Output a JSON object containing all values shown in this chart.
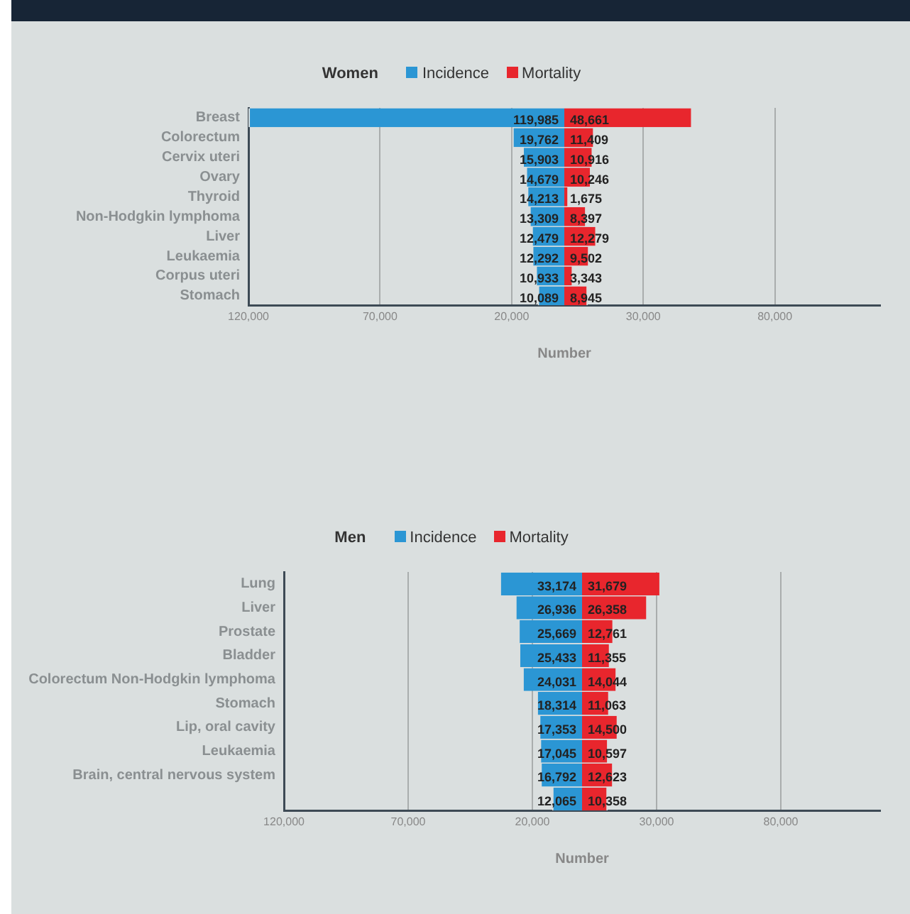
{
  "chart_data": [
    {
      "type": "bar",
      "orientation": "horizontal",
      "legend_title": "Women",
      "legend": "top",
      "xlabel": "Number",
      "grid": "x",
      "categories": [
        "Breast",
        "Colorectum",
        "Cervix uteri",
        "Ovary",
        "Thyroid",
        "Non-Hodgkin lymphoma",
        "Liver",
        "Leukaemia",
        "Corpus uteri",
        "Stomach"
      ],
      "xlim": [
        -120000,
        120000
      ],
      "xticks": [
        {
          "value": -120000,
          "label": "120,000"
        },
        {
          "value": -70000,
          "label": "70,000"
        },
        {
          "value": -20000,
          "label": "20,000"
        },
        {
          "value": 30000,
          "label": "30,000"
        },
        {
          "value": 80000,
          "label": "80,000"
        }
      ],
      "series": [
        {
          "name": "Incidence",
          "color": "#2b96d4",
          "base": [
            -119985,
            -19762,
            -15903,
            -14679,
            -14213,
            -13309,
            -12479,
            -12292,
            -10933,
            -10089
          ],
          "values": [
            119985,
            19762,
            15903,
            14679,
            14213,
            13309,
            12479,
            12292,
            10933,
            10089
          ],
          "value_labels": [
            "119,985",
            "19,762",
            "15,903",
            "14,679",
            "14,213",
            "13,309",
            "12,479",
            "12,292",
            "10,933",
            "10,089"
          ]
        },
        {
          "name": "Mortality",
          "color": "#e8262d",
          "values": [
            48661,
            11409,
            10916,
            10246,
            1675,
            8397,
            12279,
            9502,
            3343,
            8945
          ],
          "value_labels": [
            "48,661",
            "11,409",
            "10,916",
            "10,246",
            "1,675",
            "8,397",
            "12,279",
            "9,502",
            "3,343",
            "8,945"
          ]
        }
      ]
    },
    {
      "type": "bar",
      "orientation": "horizontal",
      "legend_title": "Men",
      "legend": "top",
      "xlabel": "Number",
      "grid": "x",
      "categories": [
        "Lung",
        "Liver",
        "Prostate",
        "Bladder",
        "Colorectum Non-Hodgkin lymphoma",
        "Stomach",
        "Lip, oral cavity",
        "Leukaemia",
        "Brain, central nervous system",
        null
      ],
      "xlim": [
        -120000,
        120000
      ],
      "xticks": [
        {
          "value": -120000,
          "label": "120,000"
        },
        {
          "value": -70000,
          "label": "70,000"
        },
        {
          "value": -20000,
          "label": "20,000"
        },
        {
          "value": 30000,
          "label": "30,000"
        },
        {
          "value": 80000,
          "label": "80,000"
        }
      ],
      "series": [
        {
          "name": "Incidence",
          "color": "#2b96d4",
          "base": [
            -33174,
            -26936,
            -25669,
            -25433,
            -24031,
            -18314,
            -17353,
            -17045,
            -16792,
            -12065
          ],
          "values": [
            33174,
            26936,
            25669,
            25433,
            24031,
            18314,
            17353,
            17045,
            16792,
            12065
          ],
          "value_labels": [
            "33,174",
            "26,936",
            "25,669",
            "25,433",
            "24,031",
            "18,314",
            "17,353",
            "17,045",
            "16,792",
            "12,065"
          ]
        },
        {
          "name": "Mortality",
          "color": "#e8262d",
          "values": [
            31679,
            26358,
            12761,
            11355,
            14044,
            11063,
            14500,
            10597,
            12623,
            10358
          ],
          "value_labels": [
            "31,679",
            "26,358",
            "12,761",
            "11,355",
            "14,044",
            "11,063",
            "14,500",
            "10,597",
            "12,623",
            "10,358"
          ]
        }
      ]
    }
  ]
}
